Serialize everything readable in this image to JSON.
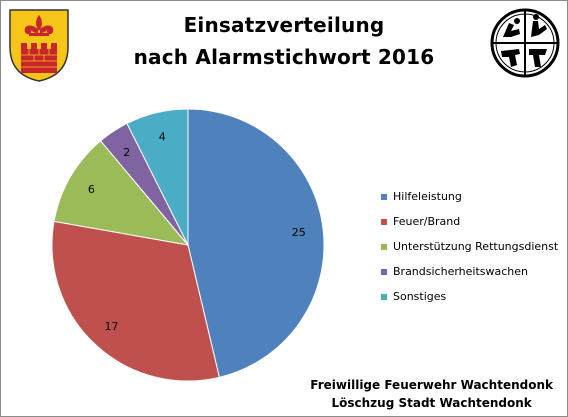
{
  "chart_data": {
    "type": "pie",
    "title": [
      "Einsatzverteilung",
      "nach Alarmstichwort 2016"
    ],
    "categories": [
      "Hilfeleistung",
      "Feuer/Brand",
      "Unterstützung Rettungsdienst",
      "Brandsicherheitswachen",
      "Sonstiges"
    ],
    "values": [
      25,
      17,
      6,
      2,
      4
    ],
    "colors": [
      "#4f81bd",
      "#c0504d",
      "#9bbb59",
      "#8064a2",
      "#4bacc6"
    ],
    "data_labels": [
      "25",
      "17",
      "6",
      "2",
      "4"
    ],
    "legend_position": "right"
  },
  "footer": {
    "line1": "Freiwillige Feuerwehr Wachtendonk",
    "line2": "Löschzug Stadt Wachtendonk"
  },
  "logos": {
    "left": "town-coat-of-arms",
    "right": "fire-brigade-emblem"
  }
}
